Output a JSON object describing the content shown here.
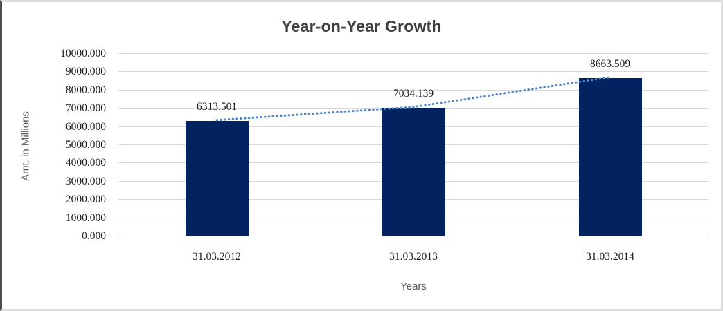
{
  "chart_data": {
    "type": "bar",
    "title": "Year-on-Year Growth",
    "categories": [
      "31.03.2012",
      "31.03.2013",
      "31.03.2014"
    ],
    "values": [
      6313.501,
      7034.139,
      8663.509
    ],
    "data_labels": [
      "6313.501",
      "7034.139",
      "8663.509"
    ],
    "xlabel": "Years",
    "ylabel": "Amt. in Millions",
    "ylim": [
      0,
      10000
    ],
    "ytick_step": 1000,
    "ytick_labels": [
      "0.000",
      "1000.000",
      "2000.000",
      "3000.000",
      "4000.000",
      "5000.000",
      "6000.000",
      "7000.000",
      "8000.000",
      "9000.000",
      "10000.000"
    ],
    "grid": true,
    "legend": "none",
    "trendline": {
      "style": "dotted",
      "color": "#4e87c6"
    },
    "colors": {
      "bar": "#02235f",
      "gridline": "#d9d9d9",
      "axis_line": "#a6a6a6",
      "title_text": "#3f3f3f",
      "tick_text": "#1a1a1a",
      "axis_title_text": "#595959"
    }
  }
}
